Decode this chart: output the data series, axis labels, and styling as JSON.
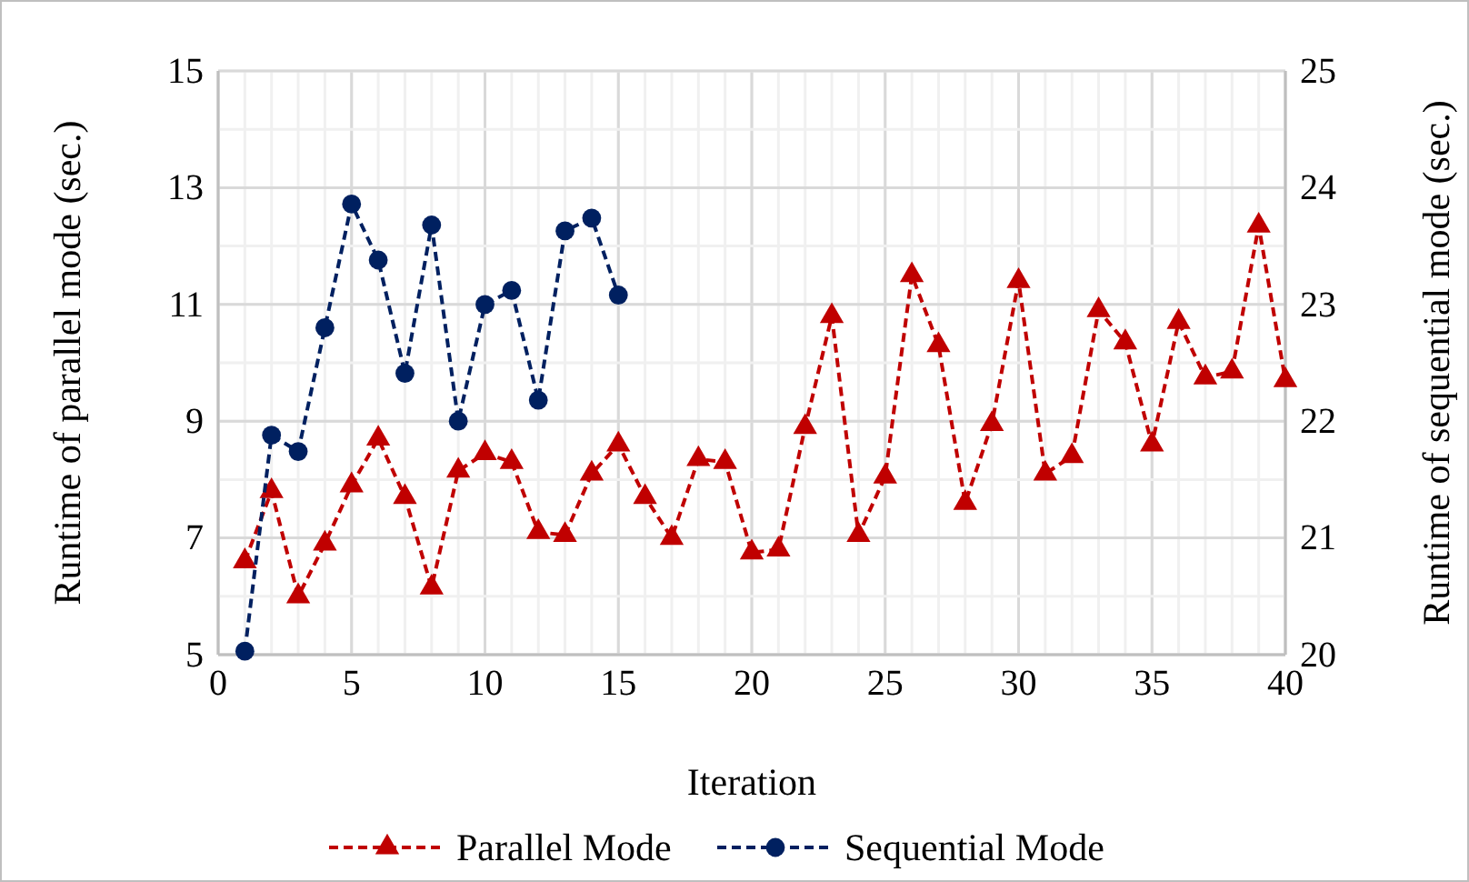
{
  "chart_data": {
    "type": "line",
    "xlabel": "Iteration",
    "ylabel": "Runtime of parallel mode (sec.)",
    "y2label": "Runtime of sequential mode (sec.)",
    "xlim": [
      0,
      40
    ],
    "xticks": [
      0,
      5,
      10,
      15,
      20,
      25,
      30,
      35,
      40
    ],
    "ylim": [
      5,
      15
    ],
    "yticks": [
      5,
      7,
      9,
      11,
      13,
      15
    ],
    "y2lim": [
      20,
      25
    ],
    "y2ticks": [
      20,
      21,
      22,
      23,
      24,
      25
    ],
    "grid": true,
    "legend": "bottom",
    "line_style": "dashed",
    "series": [
      {
        "name": "Parallel Mode",
        "color": "#c00000",
        "marker": "triangle",
        "x": [
          1,
          2,
          3,
          4,
          5,
          6,
          7,
          8,
          9,
          10,
          11,
          12,
          13,
          14,
          15,
          16,
          17,
          18,
          19,
          20,
          21,
          22,
          23,
          24,
          25,
          26,
          27,
          28,
          29,
          30,
          31,
          32,
          33,
          34,
          35,
          36,
          37,
          38,
          39,
          40
        ],
        "values": [
          6.6,
          7.8,
          6.0,
          6.9,
          7.9,
          8.7,
          7.7,
          6.15,
          8.15,
          8.45,
          8.3,
          7.1,
          7.05,
          8.1,
          8.6,
          7.7,
          7.0,
          8.35,
          8.3,
          6.75,
          6.8,
          8.9,
          10.8,
          7.05,
          8.05,
          11.5,
          10.3,
          7.6,
          8.95,
          11.4,
          8.1,
          8.4,
          10.9,
          10.35,
          8.6,
          10.7,
          9.75,
          9.85,
          12.35,
          9.7
        ]
      },
      {
        "name": "Sequential Mode",
        "color": "#002060",
        "marker": "circle",
        "axis": "y2",
        "x": [
          1,
          2,
          3,
          4,
          5,
          6,
          7,
          8,
          9,
          10,
          11,
          12,
          13,
          14,
          15
        ],
        "values": [
          20.03,
          21.88,
          21.74,
          22.8,
          23.86,
          23.38,
          22.41,
          23.68,
          22.0,
          23.0,
          23.12,
          22.18,
          23.63,
          23.74,
          23.08
        ]
      }
    ]
  }
}
